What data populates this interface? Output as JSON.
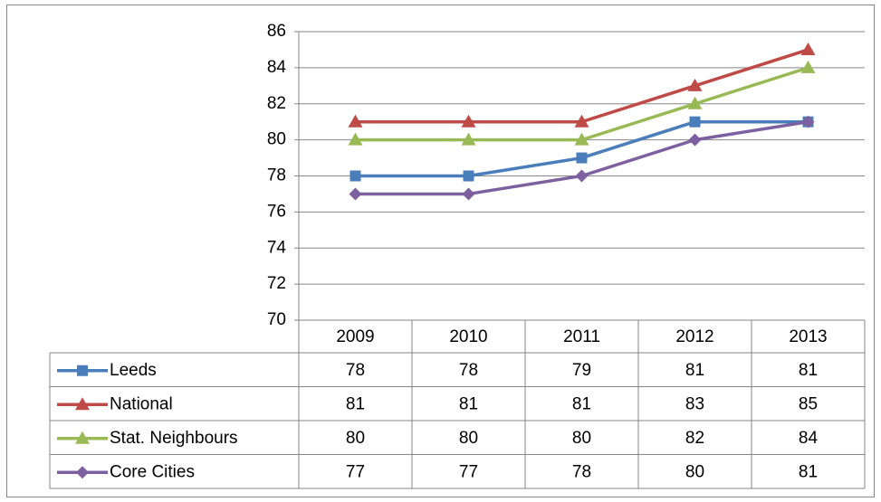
{
  "chart_data": {
    "type": "line",
    "categories": [
      "2009",
      "2010",
      "2011",
      "2012",
      "2013"
    ],
    "series": [
      {
        "name": "Leeds",
        "color": "#4a7ebb",
        "marker": "square",
        "values": [
          78,
          78,
          79,
          81,
          81
        ]
      },
      {
        "name": "National",
        "color": "#be4b48",
        "marker": "triangle",
        "values": [
          81,
          81,
          81,
          83,
          85
        ]
      },
      {
        "name": "Stat. Neighbours",
        "color": "#98b954",
        "marker": "triangle",
        "values": [
          80,
          80,
          80,
          82,
          84
        ]
      },
      {
        "name": "Core Cities",
        "color": "#7d60a0",
        "marker": "diamond",
        "values": [
          77,
          77,
          78,
          80,
          81
        ]
      }
    ],
    "ylim": [
      70,
      86
    ],
    "yticks": [
      70,
      72,
      74,
      76,
      78,
      80,
      82,
      84,
      86
    ],
    "grid": true,
    "legend": "data-table"
  }
}
